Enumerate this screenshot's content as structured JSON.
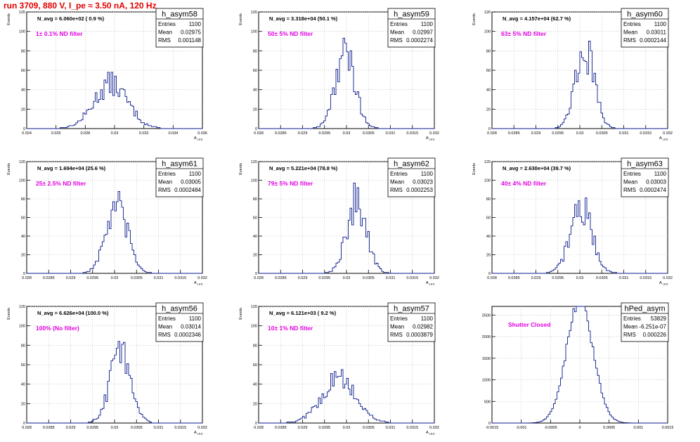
{
  "page": {
    "title": "run 3709,   880 V, I_pe ≈ 3.50 nA, 120 Hz"
  },
  "colors": {
    "histogram_line": "#0a1a8c",
    "annotation": "#e000e0",
    "title_text": "#e00000",
    "grid": "#b0b0b0"
  },
  "stats_labels": {
    "entries": "Entries",
    "mean": "Mean",
    "rms": "RMS"
  },
  "chart_data": [
    {
      "type": "histogram",
      "name": "h_asym58",
      "navg": "N_avg = 6.060e+02 ( 0.9 %)",
      "note": "1± 0.1% ND filter",
      "entries": "1100",
      "mean": "0.02975",
      "rms": "0.001148",
      "mean_value": 0.02975,
      "rms_value": 0.001148,
      "total": 1100,
      "xlim": [
        0.024,
        0.036
      ],
      "xticks": [
        0.024,
        0.026,
        0.028,
        0.03,
        0.032,
        0.034,
        0.036
      ],
      "xtick_labels": [
        "0.024",
        "0.026",
        "0.028",
        "0.03",
        "0.032",
        "0.034",
        "0.036"
      ],
      "ylim": [
        0,
        120
      ],
      "yticks": [
        0,
        20,
        40,
        60,
        80,
        100,
        120
      ],
      "ylabel": "Events",
      "xlabel": "A",
      "xlabel_sub": "LED",
      "grid": true
    },
    {
      "type": "histogram",
      "name": "h_asym59",
      "navg": "N_avg = 3.318e+04 (50.1 %)",
      "note": "50± 5% ND filter",
      "entries": "1100",
      "mean": "0.02997",
      "rms": "0.0002274",
      "mean_value": 0.02997,
      "rms_value": 0.0002274,
      "total": 1100,
      "xlim": [
        0.028,
        0.032
      ],
      "xticks": [
        0.028,
        0.0285,
        0.029,
        0.0295,
        0.03,
        0.0305,
        0.031,
        0.0315,
        0.032
      ],
      "xtick_labels": [
        "0.028",
        "0.0285",
        "0.029",
        "0.0295",
        "0.03",
        "0.0305",
        "0.031",
        "0.0315",
        "0.032"
      ],
      "ylim": [
        0,
        120
      ],
      "yticks": [
        0,
        20,
        40,
        60,
        80,
        100,
        120
      ],
      "ylabel": "Events",
      "xlabel": "A",
      "xlabel_sub": "LED",
      "grid": true
    },
    {
      "type": "histogram",
      "name": "h_asym60",
      "navg": "N_avg = 4.157e+04 (62.7 %)",
      "note": "63± 5% ND filter",
      "entries": "1100",
      "mean": "0.03011",
      "rms": "0.0002144",
      "mean_value": 0.03011,
      "rms_value": 0.0002144,
      "total": 1100,
      "xlim": [
        0.028,
        0.032
      ],
      "xticks": [
        0.028,
        0.0285,
        0.029,
        0.0295,
        0.03,
        0.0305,
        0.031,
        0.0315,
        0.032
      ],
      "xtick_labels": [
        "0.028",
        "0.0285",
        "0.029",
        "0.0295",
        "0.03",
        "0.0305",
        "0.031",
        "0.0315",
        "0.032"
      ],
      "ylim": [
        0,
        120
      ],
      "yticks": [
        0,
        20,
        40,
        60,
        80,
        100,
        120
      ],
      "ylabel": "Events",
      "xlabel": "A",
      "xlabel_sub": "LED",
      "grid": true
    },
    {
      "type": "histogram",
      "name": "h_asym61",
      "navg": "N_avg = 1.694e+04 (25.6 %)",
      "note": "25± 2.5% ND filter",
      "entries": "1100",
      "mean": "0.03005",
      "rms": "0.0002484",
      "mean_value": 0.03005,
      "rms_value": 0.0002484,
      "total": 1100,
      "xlim": [
        0.028,
        0.032
      ],
      "xticks": [
        0.028,
        0.0285,
        0.029,
        0.0295,
        0.03,
        0.0305,
        0.031,
        0.0315,
        0.032
      ],
      "xtick_labels": [
        "0.028",
        "0.0285",
        "0.029",
        "0.0295",
        "0.03",
        "0.0305",
        "0.031",
        "0.0315",
        "0.032"
      ],
      "ylim": [
        0,
        120
      ],
      "yticks": [
        0,
        20,
        40,
        60,
        80,
        100,
        120
      ],
      "ylabel": "Events",
      "xlabel": "A",
      "xlabel_sub": "LED",
      "grid": true
    },
    {
      "type": "histogram",
      "name": "h_asym62",
      "navg": "N_avg = 5.221e+04 (78.8 %)",
      "note": "79± 5% ND filter",
      "entries": "1100",
      "mean": "0.03023",
      "rms": "0.0002253",
      "mean_value": 0.03023,
      "rms_value": 0.0002253,
      "total": 1100,
      "xlim": [
        0.028,
        0.032
      ],
      "xticks": [
        0.028,
        0.0285,
        0.029,
        0.0295,
        0.03,
        0.0305,
        0.031,
        0.0315,
        0.032
      ],
      "xtick_labels": [
        "0.028",
        "0.0285",
        "0.029",
        "0.0295",
        "0.03",
        "0.0305",
        "0.031",
        "0.0315",
        "0.032"
      ],
      "ylim": [
        0,
        120
      ],
      "yticks": [
        0,
        20,
        40,
        60,
        80,
        100,
        120
      ],
      "ylabel": "Events",
      "xlabel": "A",
      "xlabel_sub": "LED",
      "grid": true
    },
    {
      "type": "histogram",
      "name": "h_asym63",
      "navg": "N_avg = 2.630e+04 (39.7 %)",
      "note": "40± 4% ND filter",
      "entries": "1100",
      "mean": "0.03003",
      "rms": "0.0002474",
      "mean_value": 0.03003,
      "rms_value": 0.0002474,
      "total": 1100,
      "xlim": [
        0.028,
        0.032
      ],
      "xticks": [
        0.028,
        0.0285,
        0.029,
        0.0295,
        0.03,
        0.0305,
        0.031,
        0.0315,
        0.032
      ],
      "xtick_labels": [
        "0.028",
        "0.0285",
        "0.029",
        "0.0295",
        "0.03",
        "0.0305",
        "0.031",
        "0.0315",
        "0.032"
      ],
      "ylim": [
        0,
        120
      ],
      "yticks": [
        0,
        20,
        40,
        60,
        80,
        100,
        120
      ],
      "ylabel": "Events",
      "xlabel": "A",
      "xlabel_sub": "LED",
      "grid": true
    },
    {
      "type": "histogram",
      "name": "h_asym56",
      "navg": "N_avg = 6.626e+04 (100.0 %)",
      "note": "100% (No filter)",
      "entries": "1100",
      "mean": "0.03014",
      "rms": "0.0002346",
      "mean_value": 0.03014,
      "rms_value": 0.0002346,
      "total": 1100,
      "xlim": [
        0.028,
        0.032
      ],
      "xticks": [
        0.028,
        0.0285,
        0.029,
        0.0295,
        0.03,
        0.0305,
        0.031,
        0.0315,
        0.032
      ],
      "xtick_labels": [
        "0.028",
        "0.0285",
        "0.029",
        "0.0295",
        "0.03",
        "0.0305",
        "0.031",
        "0.0315",
        "0.032"
      ],
      "ylim": [
        0,
        120
      ],
      "yticks": [
        0,
        20,
        40,
        60,
        80,
        100,
        120
      ],
      "ylabel": "Events",
      "xlabel": "A",
      "xlabel_sub": "LED",
      "grid": true
    },
    {
      "type": "histogram",
      "name": "h_asym57",
      "navg": "N_avg = 6.121e+03 ( 9.2 %)",
      "note": "10± 1% ND filter",
      "entries": "1100",
      "mean": "0.02982",
      "rms": "0.0003879",
      "mean_value": 0.02982,
      "rms_value": 0.0003879,
      "total": 1100,
      "xlim": [
        0.028,
        0.032
      ],
      "xticks": [
        0.028,
        0.0285,
        0.029,
        0.0295,
        0.03,
        0.0305,
        0.031,
        0.0315,
        0.032
      ],
      "xtick_labels": [
        "0.028",
        "0.0285",
        "0.029",
        "0.0295",
        "0.03",
        "0.0305",
        "0.031",
        "0.0315",
        "0.032"
      ],
      "ylim": [
        0,
        120
      ],
      "yticks": [
        0,
        20,
        40,
        60,
        80,
        100,
        120
      ],
      "ylabel": "Events",
      "xlabel": "A",
      "xlabel_sub": "LED",
      "grid": true
    },
    {
      "type": "histogram",
      "name": "hPed_asym",
      "navg": "",
      "note": "Shutter Closed",
      "entries": "53829",
      "mean": "-6.251e-07",
      "rms": "0.000226",
      "mean_value": 0.0,
      "rms_value": 0.000226,
      "total": 53829,
      "xlim": [
        -0.0015,
        0.0015
      ],
      "xticks": [
        -0.0015,
        -0.001,
        -0.0005,
        0,
        0.0005,
        0.001,
        0.0015
      ],
      "xtick_labels": [
        "-0.0015",
        "-0.001",
        "-0.0005",
        "0",
        "0.0005",
        "0.001",
        "0.0015"
      ],
      "ylim": [
        0,
        2700
      ],
      "yticks": [
        0,
        500,
        1000,
        1500,
        2000,
        2500
      ],
      "ylabel": "",
      "xlabel": "",
      "xlabel_sub": "",
      "grid": true
    }
  ]
}
